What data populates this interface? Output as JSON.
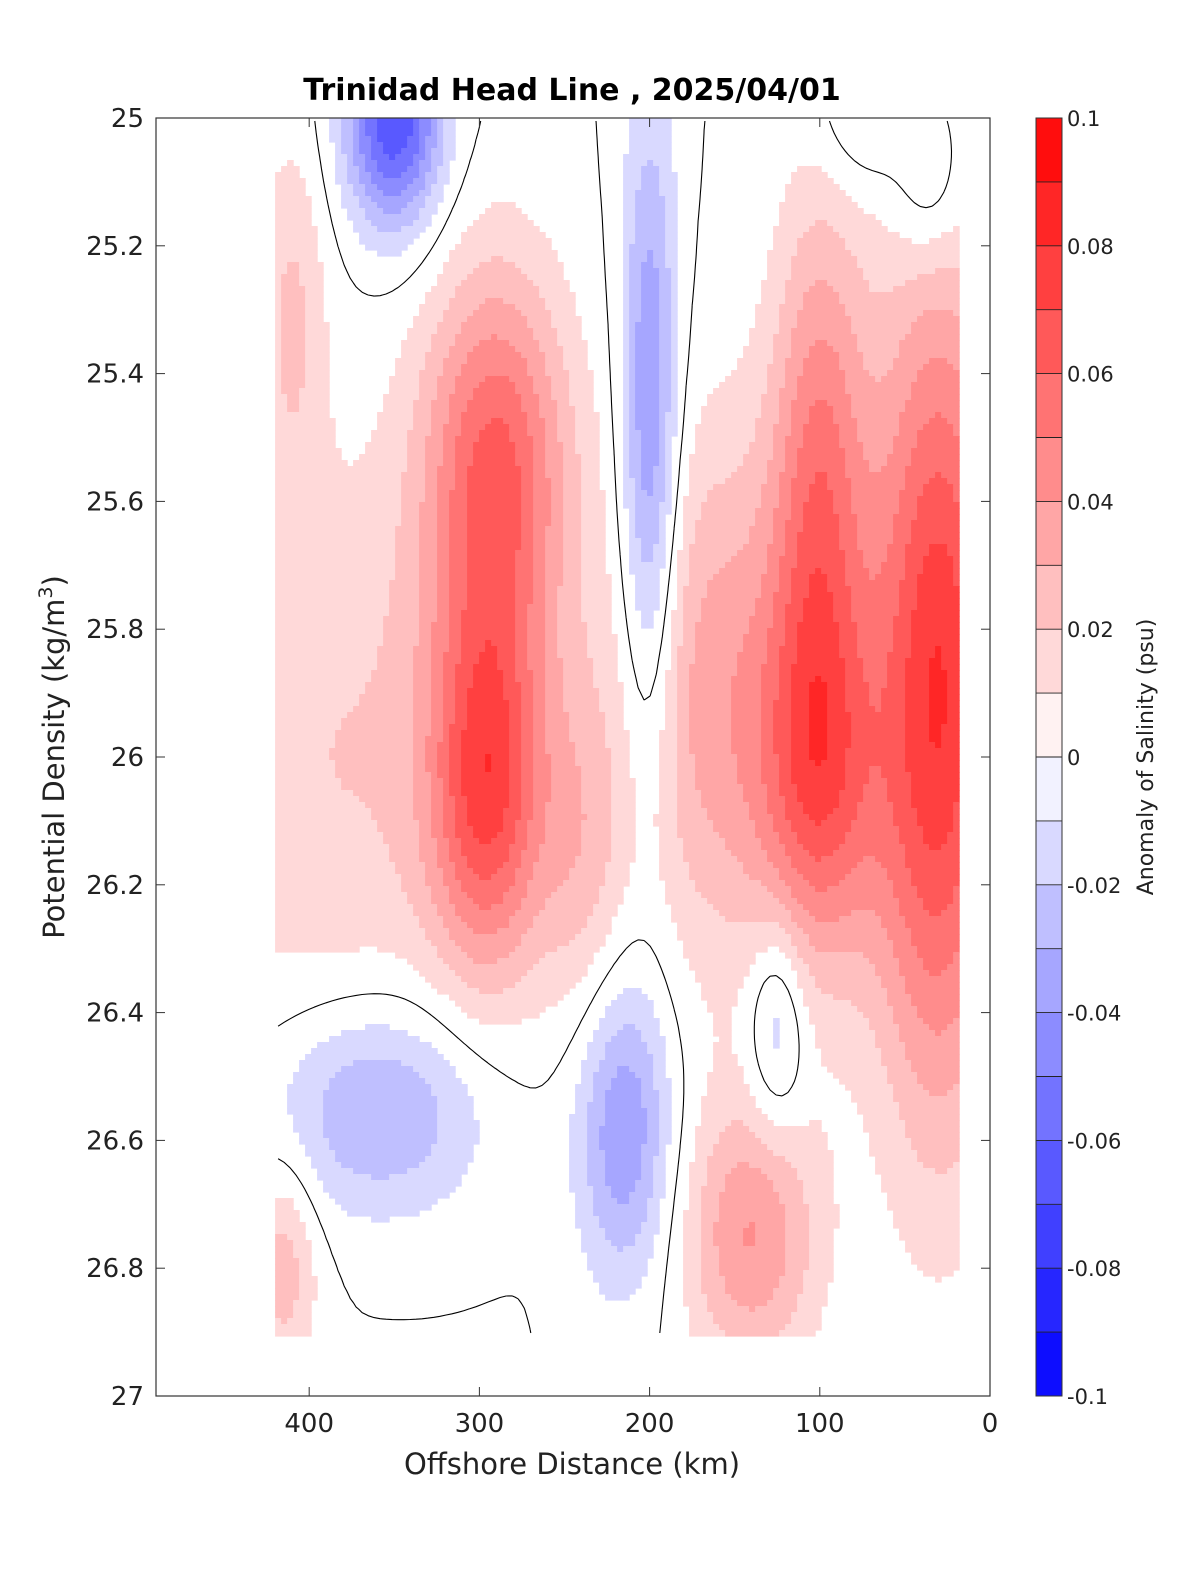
{
  "chart_data": {
    "type": "contour",
    "title": "Trinidad Head Line , 2025/04/01",
    "xlabel": "Offshore Distance (km)",
    "ylabel": "Potential Density (kg/m",
    "ylabel_sup": "3",
    "ylabel_close": ")",
    "xlim": [
      490,
      0
    ],
    "ylim": [
      25,
      27
    ],
    "x_ticks": [
      400,
      300,
      200,
      100,
      0
    ],
    "x_tick_labels": [
      "400",
      "300",
      "200",
      "100",
      "0"
    ],
    "y_ticks": [
      25,
      25.2,
      25.4,
      25.6,
      25.8,
      26,
      26.2,
      26.4,
      26.6,
      26.8,
      27
    ],
    "y_tick_labels": [
      "25",
      "25.2",
      "25.4",
      "25.6",
      "25.8",
      "26",
      "26.2",
      "26.4",
      "26.6",
      "26.8",
      "27"
    ],
    "data_extent": {
      "x": [
        20,
        420
      ],
      "y": [
        25,
        26.9
      ]
    },
    "colorbar": {
      "label": "Anomaly of Salinity (psu)",
      "range": [
        -0.1,
        0.1
      ],
      "level_step": 0.01,
      "ticks": [
        0.1,
        0.08,
        0.06,
        0.04,
        0.02,
        0,
        -0.02,
        -0.04,
        -0.06,
        -0.08,
        -0.1
      ],
      "tick_labels": [
        "0.1",
        "0.08",
        "0.06",
        "0.04",
        "0.02",
        "0",
        "-0.02",
        "-0.04",
        "-0.06",
        "-0.08",
        "-0.1"
      ],
      "colormap": "blue-white-red",
      "low_color": "#0000ff",
      "mid_color": "#ffffff",
      "high_color": "#ff0000"
    },
    "features": [
      {
        "x": 290,
        "y": 25.55,
        "sx": 30,
        "sy": 0.22,
        "amp": 0.06
      },
      {
        "x": 295,
        "y": 26.05,
        "sx": 24,
        "sy": 0.2,
        "amp": 0.065
      },
      {
        "x": 100,
        "y": 25.6,
        "sx": 20,
        "sy": 0.32,
        "amp": 0.05
      },
      {
        "x": 100,
        "y": 26.05,
        "sx": 26,
        "sy": 0.2,
        "amp": 0.045
      },
      {
        "x": 30,
        "y": 25.9,
        "sx": 28,
        "sy": 0.45,
        "amp": 0.08
      },
      {
        "x": 160,
        "y": 25.9,
        "sx": 40,
        "sy": 0.3,
        "amp": 0.035
      },
      {
        "x": 140,
        "y": 26.75,
        "sx": 28,
        "sy": 0.15,
        "amp": 0.04
      },
      {
        "x": 410,
        "y": 25.3,
        "sx": 14,
        "sy": 0.2,
        "amp": 0.02
      },
      {
        "x": 380,
        "y": 26.0,
        "sx": 70,
        "sy": 0.35,
        "amp": 0.02
      },
      {
        "x": 415,
        "y": 26.8,
        "sx": 14,
        "sy": 0.12,
        "amp": 0.025
      },
      {
        "x": 240,
        "y": 26.15,
        "sx": 18,
        "sy": 0.2,
        "amp": 0.02
      },
      {
        "x": 350,
        "y": 25.0,
        "sx": 20,
        "sy": 0.12,
        "amp": -0.07
      },
      {
        "x": 360,
        "y": 26.55,
        "sx": 45,
        "sy": 0.12,
        "amp": -0.035
      },
      {
        "x": 215,
        "y": 26.58,
        "sx": 20,
        "sy": 0.17,
        "amp": -0.04
      },
      {
        "x": 200,
        "y": 25.5,
        "sx": 12,
        "sy": 0.35,
        "amp": -0.045
      },
      {
        "x": 125,
        "y": 26.42,
        "sx": 12,
        "sy": 0.12,
        "amp": -0.025
      },
      {
        "x": 35,
        "y": 25.1,
        "sx": 15,
        "sy": 0.1,
        "amp": -0.02
      },
      {
        "x": 75,
        "y": 25.0,
        "sx": 20,
        "sy": 0.08,
        "amp": -0.015
      }
    ]
  }
}
